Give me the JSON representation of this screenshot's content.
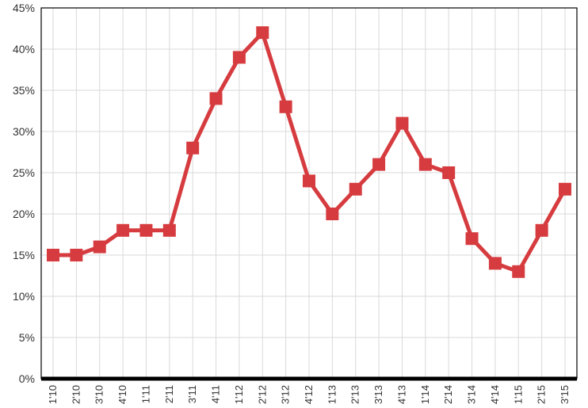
{
  "chart_data": {
    "type": "line",
    "title": "",
    "xlabel": "",
    "ylabel": "",
    "categories": [
      "1'10",
      "2'10",
      "3'10",
      "4'10",
      "1'11",
      "2'11",
      "3'11",
      "4'11",
      "1'12",
      "2'12",
      "3'12",
      "4'12",
      "1'13",
      "2'13",
      "3'13",
      "4'13",
      "1'14",
      "2'14",
      "3'14",
      "4'14",
      "1'15",
      "2'15",
      "3'15"
    ],
    "series": [
      {
        "values": [
          15,
          15,
          16,
          18,
          18,
          18,
          28,
          34,
          39,
          42,
          33,
          24,
          20,
          23,
          26,
          31,
          26,
          25,
          17,
          14,
          13,
          18,
          23
        ]
      }
    ],
    "ylim": [
      0,
      45
    ],
    "y_ticks": [
      "0%",
      "5%",
      "10%",
      "15%",
      "20%",
      "25%",
      "30%",
      "35%",
      "40%",
      "45%"
    ],
    "y_tick_values": [
      0,
      5,
      10,
      15,
      20,
      25,
      30,
      35,
      40,
      45
    ],
    "grid": true,
    "legend": "none",
    "colors": {
      "line": "#d63c3f",
      "marker": "#d63c3f",
      "grid": "#d9d9d9",
      "axis": "#000000",
      "border": "#000000"
    }
  }
}
